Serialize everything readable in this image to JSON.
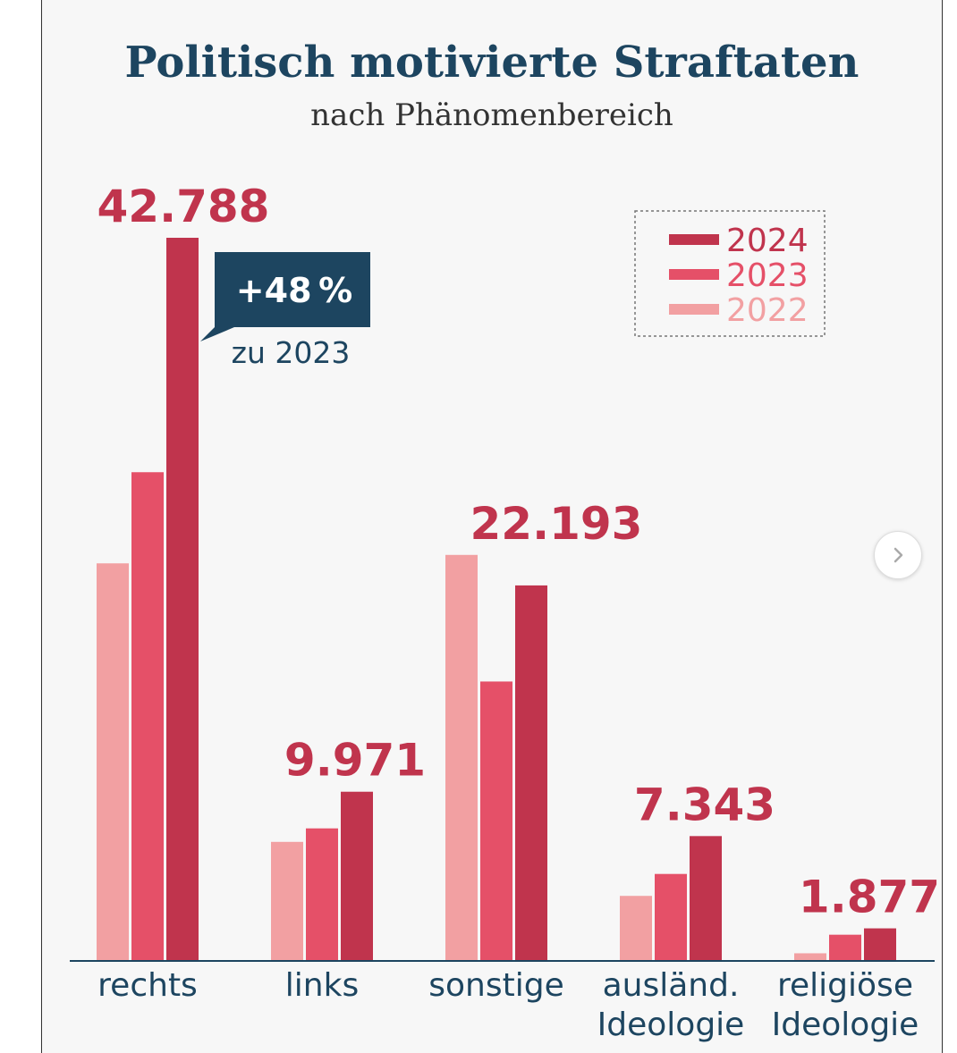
{
  "chart_data": {
    "type": "bar",
    "title": "Politisch motivierte Straftaten",
    "subtitle": "nach Phänomenbereich",
    "categories": [
      [
        "rechts"
      ],
      [
        "links"
      ],
      [
        "sonstige"
      ],
      [
        "ausländ.",
        "Ideologie"
      ],
      [
        "religiöse",
        "Ideologie"
      ]
    ],
    "series": [
      {
        "name": "2022",
        "color": "#f2a0a2",
        "values": [
          23500,
          7000,
          24000,
          3800,
          400
        ]
      },
      {
        "name": "2023",
        "color": "#e55068",
        "values": [
          28900,
          7800,
          16500,
          5100,
          1500
        ]
      },
      {
        "name": "2024",
        "color": "#c0344d",
        "values": [
          42788,
          9971,
          22193,
          7343,
          1877
        ]
      }
    ],
    "value_labels": [
      "42.788",
      "9.971",
      "22.193",
      "7.343",
      "1.877"
    ],
    "annotation": {
      "text": "+48 %",
      "subtext": "zu 2023"
    },
    "legend_position": "top-right",
    "ylim": [
      0,
      42788
    ],
    "grid": false
  }
}
